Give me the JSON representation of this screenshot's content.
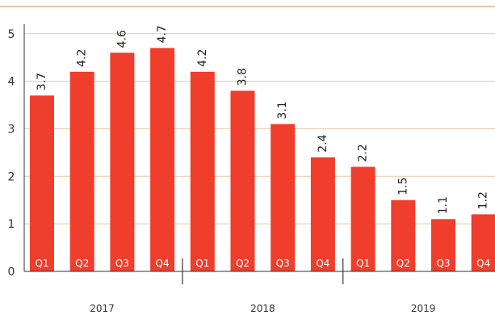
{
  "chart_data": {
    "type": "bar",
    "categories": [
      "Q1",
      "Q2",
      "Q3",
      "Q4",
      "Q1",
      "Q2",
      "Q3",
      "Q4",
      "Q1",
      "Q2",
      "Q3",
      "Q4"
    ],
    "values": [
      3.7,
      4.2,
      4.6,
      4.7,
      4.2,
      3.8,
      3.1,
      2.4,
      2.2,
      1.5,
      1.1,
      1.2
    ],
    "value_labels": [
      "3.7",
      "4.2",
      "4.6",
      "4.7",
      "4.2",
      "3.8",
      "3.1",
      "2.4",
      "2.2",
      "1.5",
      "1.1",
      "1.2"
    ],
    "years": [
      "2017",
      "2018",
      "2019"
    ],
    "ylim": [
      0,
      5.2
    ],
    "yticks": [
      0,
      1,
      2,
      3,
      4,
      5
    ],
    "grid": true,
    "colors": {
      "bar": "#ef3e2c",
      "grid": "#e8c9a8",
      "top_rule": "#e2b98e",
      "axis": "#333333"
    }
  }
}
